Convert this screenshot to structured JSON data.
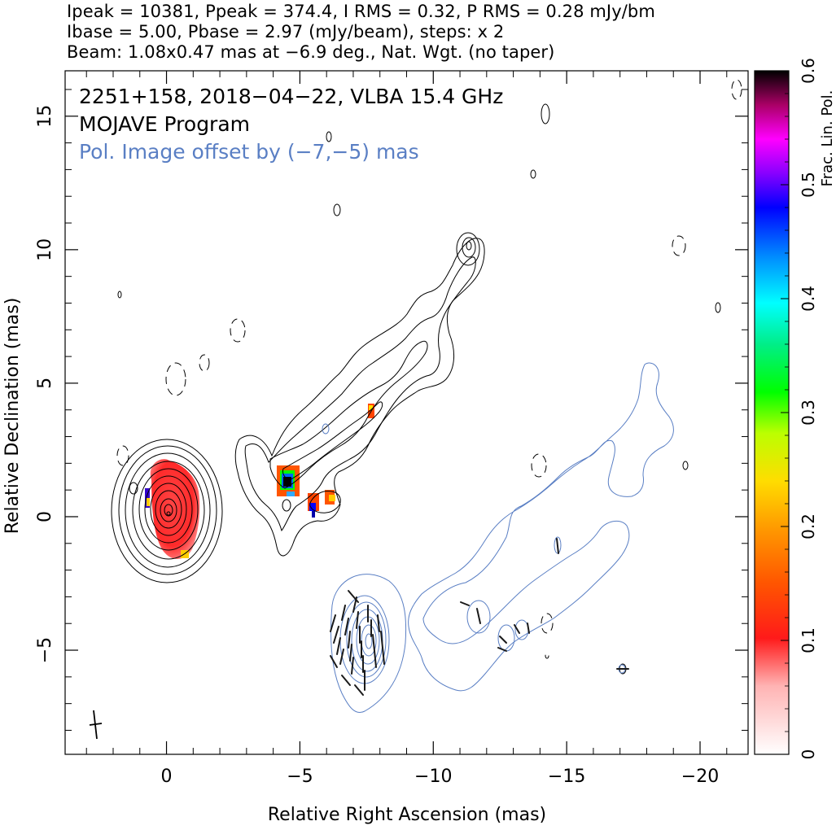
{
  "header": {
    "line1": "Ipeak = 10381, Ppeak = 374.4, I RMS = 0.32, P RMS = 0.28 mJy/bm",
    "line2": "Ibase = 5.00, Pbase = 2.97 (mJy/beam), steps: x 2",
    "line3": "Beam: 1.08x0.47 mas at −6.9 deg., Nat. Wgt. (no taper)"
  },
  "annotations": {
    "source": "2251+158, 2018−04−22, VLBA 15.4 GHz",
    "program": "MOJAVE Program",
    "offset_note": "Pol. Image offset by (−7,−5) mas"
  },
  "colors": {
    "stokes_i_contour": "#000000",
    "pol_contour": "#5a7fc4",
    "offset_note_text": "#5a7fc4",
    "evpa_ticks": "#1a1a1a"
  },
  "chart_data": {
    "type": "heatmap",
    "title": "2251+158, 2018−04−22, VLBA 15.4 GHz",
    "xlabel": "Relative Right Ascension (mas)",
    "ylabel": "Relative Declination (mas)",
    "xlim": [
      3.8,
      -21.8
    ],
    "ylim": [
      -8.9,
      16.7
    ],
    "x_reversed": true,
    "xticks": [
      0,
      -5,
      -10,
      -15,
      -20
    ],
    "xtick_labels": [
      "0",
      "−5",
      "−10",
      "−15",
      "−20"
    ],
    "yticks": [
      -5,
      0,
      5,
      10,
      15
    ],
    "ytick_labels": [
      "−5",
      "0",
      "5",
      "10",
      "15"
    ],
    "colorbar": {
      "label": "Frac. Lin. Pol.",
      "range": [
        0,
        0.6
      ],
      "ticks": [
        0,
        0.1,
        0.2,
        0.3,
        0.4,
        0.5,
        0.6
      ],
      "tick_labels": [
        "0",
        "0.1",
        "0.2",
        "0.3",
        "0.4",
        "0.5",
        "0.6"
      ]
    },
    "stokes_i": {
      "peak_mJy_per_beam": 10381,
      "base_mJy_per_beam": 5.0,
      "contour_step_factor": 2,
      "core_position": [
        0,
        0
      ]
    },
    "polarization": {
      "peak_mJy_per_beam": 374.4,
      "base_mJy_per_beam": 2.97,
      "offset_mas": [
        -7,
        -5
      ]
    },
    "fractional_pol_regions": [
      {
        "x": 0.1,
        "y": 0.2,
        "frac": 0.08
      },
      {
        "x": -4.5,
        "y": 1.3,
        "frac": 0.58
      },
      {
        "x": -5.6,
        "y": 0.4,
        "frac": 0.25
      },
      {
        "x": -6.2,
        "y": 0.6,
        "frac": 0.22
      },
      {
        "x": -7.6,
        "y": 3.8,
        "frac": 0.14
      }
    ],
    "beam": {
      "major_mas": 1.08,
      "minor_mas": 0.47,
      "pa_deg": -6.9
    }
  }
}
